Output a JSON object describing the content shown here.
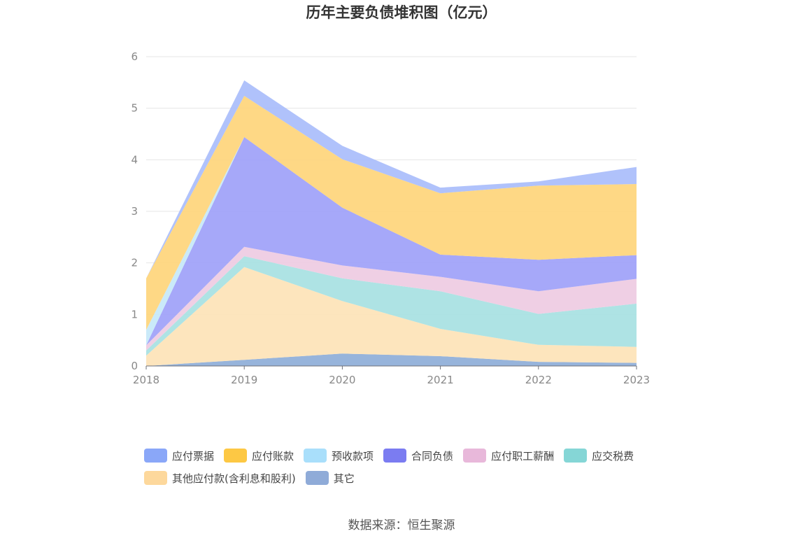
{
  "chart_data": {
    "type": "area",
    "stacked": true,
    "title": "历年主要负债堆积图（亿元）",
    "x": [
      "2018",
      "2019",
      "2020",
      "2021",
      "2022",
      "2023"
    ],
    "ylim": [
      0,
      6
    ],
    "yticks": [
      "0",
      "1",
      "2",
      "3",
      "4",
      "5",
      "6"
    ],
    "grid": true,
    "legend_position": "bottom",
    "series": [
      {
        "name": "其它",
        "color": "#8eaed8",
        "values": [
          0.0,
          0.12,
          0.24,
          0.19,
          0.08,
          0.06
        ]
      },
      {
        "name": "其他应付款(含利息和股利)",
        "color": "#fde3b7",
        "values": [
          0.2,
          1.8,
          1.02,
          0.53,
          0.33,
          0.31
        ]
      },
      {
        "name": "应交税费",
        "color": "#a7e1e2",
        "values": [
          0.1,
          0.21,
          0.44,
          0.73,
          0.6,
          0.84
        ]
      },
      {
        "name": "应付职工薪酬",
        "color": "#eecbe2",
        "values": [
          0.1,
          0.18,
          0.25,
          0.28,
          0.44,
          0.48
        ]
      },
      {
        "name": "合同负债",
        "color": "#9ea1f8",
        "values": [
          0.0,
          2.13,
          1.12,
          0.43,
          0.61,
          0.46
        ]
      },
      {
        "name": "预收款项",
        "color": "#c6e8f8",
        "values": [
          0.3,
          0.0,
          0.0,
          0.0,
          0.0,
          0.0
        ]
      },
      {
        "name": "应付账款",
        "color": "#fed57b",
        "values": [
          1.0,
          0.8,
          0.94,
          1.19,
          1.44,
          1.38
        ]
      },
      {
        "name": "应付票据",
        "color": "#a9bdfb",
        "values": [
          0.0,
          0.3,
          0.26,
          0.11,
          0.08,
          0.33
        ]
      }
    ]
  },
  "legend": [
    {
      "name": "应付票据",
      "color": "#8aa7f8"
    },
    {
      "name": "应付账款",
      "color": "#fdc844"
    },
    {
      "name": "预收款项",
      "color": "#a9dffb"
    },
    {
      "name": "合同负债",
      "color": "#7b7cf1"
    },
    {
      "name": "应付职工薪酬",
      "color": "#e8b8da"
    },
    {
      "name": "应交税费",
      "color": "#85d6d6"
    },
    {
      "name": "其他应付款(含利息和股利)",
      "color": "#fdd89c"
    },
    {
      "name": "其它",
      "color": "#8fabd8"
    }
  ],
  "source_text": "数据来源：恒生聚源"
}
